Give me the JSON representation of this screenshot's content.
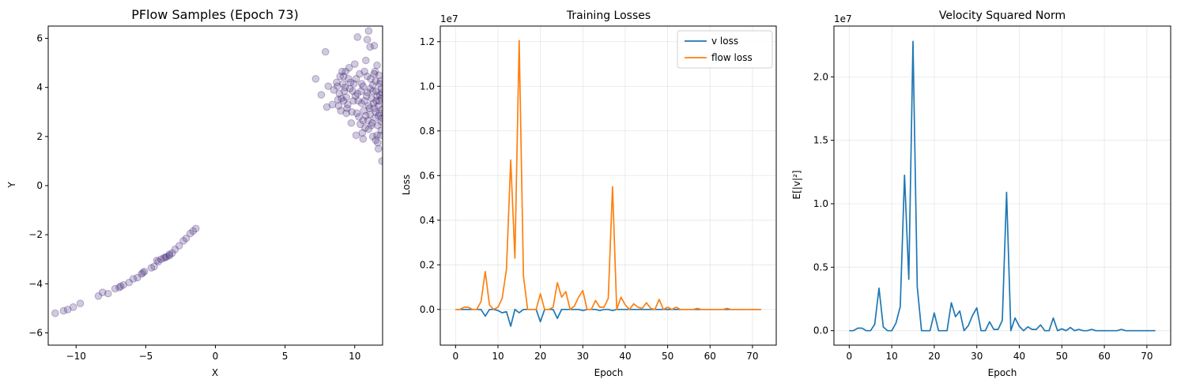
{
  "colors": {
    "scatter": "#472d7b",
    "v_loss": "#1f77b4",
    "flow_loss": "#ff7f0e"
  },
  "chart_data": [
    {
      "type": "scatter",
      "title": "PFlow Samples (Epoch 73)",
      "xlabel": "X",
      "ylabel": "Y",
      "xlim": [
        -12,
        12
      ],
      "ylim": [
        -6.5,
        6.5
      ],
      "xticks": [
        "−10",
        "−5",
        "0",
        "5",
        "10"
      ],
      "xtick_values": [
        -10,
        -5,
        0,
        5,
        10
      ],
      "yticks": [
        "−6",
        "−4",
        "−2",
        "0",
        "2",
        "4",
        "6"
      ],
      "ytick_values": [
        -6,
        -4,
        -2,
        0,
        2,
        4,
        6
      ],
      "grid": false,
      "points": [
        [
          -11.5,
          -5.2
        ],
        [
          -10.9,
          -5.1
        ],
        [
          -10.6,
          -5.05
        ],
        [
          -10.2,
          -4.95
        ],
        [
          -9.7,
          -4.8
        ],
        [
          -8.4,
          -4.5
        ],
        [
          -8.1,
          -4.35
        ],
        [
          -7.7,
          -4.4
        ],
        [
          -7.2,
          -4.2
        ],
        [
          -6.9,
          -4.15
        ],
        [
          -6.6,
          -4.05
        ],
        [
          -6.2,
          -3.95
        ],
        [
          -5.9,
          -3.8
        ],
        [
          -5.6,
          -3.75
        ],
        [
          -5.3,
          -3.6
        ],
        [
          -5.1,
          -3.5
        ],
        [
          -4.6,
          -3.35
        ],
        [
          -4.4,
          -3.3
        ],
        [
          -4.1,
          -3.1
        ],
        [
          -3.9,
          -3.0
        ],
        [
          -3.7,
          -2.95
        ],
        [
          -3.5,
          -2.9
        ],
        [
          -3.3,
          -2.85
        ],
        [
          -3.1,
          -2.75
        ],
        [
          -2.9,
          -2.6
        ],
        [
          -2.6,
          -2.45
        ],
        [
          -2.3,
          -2.25
        ],
        [
          -2.1,
          -2.15
        ],
        [
          -1.8,
          -1.95
        ],
        [
          -1.6,
          -1.85
        ],
        [
          -1.4,
          -1.75
        ],
        [
          -4.2,
          -3.05
        ],
        [
          -3.6,
          -2.92
        ],
        [
          -5.2,
          -3.55
        ],
        [
          -6.8,
          -4.1
        ],
        [
          -3.3,
          -2.8
        ],
        [
          7.2,
          4.35
        ],
        [
          7.6,
          3.7
        ],
        [
          7.9,
          5.45
        ],
        [
          8.1,
          4.05
        ],
        [
          8.0,
          3.2
        ],
        [
          8.4,
          3.3
        ],
        [
          8.5,
          3.9
        ],
        [
          8.7,
          4.2
        ],
        [
          8.8,
          3.5
        ],
        [
          9.0,
          3.05
        ],
        [
          9.1,
          4.65
        ],
        [
          9.2,
          4.45
        ],
        [
          9.3,
          4.0
        ],
        [
          9.4,
          3.6
        ],
        [
          9.5,
          3.3
        ],
        [
          9.6,
          4.8
        ],
        [
          9.7,
          4.2
        ],
        [
          9.8,
          3.0
        ],
        [
          9.9,
          3.45
        ],
        [
          10.0,
          4.95
        ],
        [
          10.1,
          4.35
        ],
        [
          10.2,
          3.75
        ],
        [
          10.3,
          2.8
        ],
        [
          10.4,
          2.5
        ],
        [
          10.5,
          3.35
        ],
        [
          10.6,
          4.05
        ],
        [
          10.7,
          4.65
        ],
        [
          10.8,
          5.1
        ],
        [
          10.9,
          3.8
        ],
        [
          11.0,
          2.3
        ],
        [
          11.1,
          2.9
        ],
        [
          11.2,
          3.55
        ],
        [
          11.3,
          4.1
        ],
        [
          11.4,
          4.55
        ],
        [
          11.5,
          3.0
        ],
        [
          11.6,
          2.05
        ],
        [
          11.7,
          3.25
        ],
        [
          11.8,
          3.7
        ],
        [
          11.9,
          2.6
        ],
        [
          11.95,
          1.0
        ],
        [
          10.2,
          6.05
        ],
        [
          11.0,
          6.3
        ],
        [
          11.1,
          5.65
        ],
        [
          11.4,
          5.7
        ],
        [
          11.6,
          4.9
        ],
        [
          10.9,
          5.95
        ],
        [
          11.3,
          2.0
        ],
        [
          10.6,
          1.9
        ],
        [
          10.1,
          2.05
        ],
        [
          9.4,
          2.95
        ],
        [
          9.2,
          3.45
        ],
        [
          8.9,
          3.75
        ],
        [
          11.7,
          1.5
        ],
        [
          11.5,
          1.85
        ],
        [
          11.8,
          2.95
        ],
        [
          11.9,
          3.95
        ],
        [
          11.85,
          4.25
        ],
        [
          11.75,
          3.45
        ],
        [
          11.65,
          2.45
        ],
        [
          11.55,
          3.85
        ],
        [
          11.45,
          2.75
        ],
        [
          11.35,
          3.35
        ],
        [
          11.25,
          2.55
        ],
        [
          11.15,
          4.35
        ],
        [
          11.05,
          3.15
        ],
        [
          10.95,
          2.65
        ],
        [
          10.85,
          3.65
        ],
        [
          10.75,
          2.35
        ],
        [
          10.65,
          3.05
        ],
        [
          10.55,
          2.15
        ],
        [
          10.45,
          3.85
        ],
        [
          10.35,
          4.55
        ],
        [
          10.25,
          3.45
        ],
        [
          10.15,
          2.95
        ],
        [
          10.05,
          3.65
        ],
        [
          9.95,
          4.15
        ],
        [
          9.85,
          3.85
        ],
        [
          9.75,
          2.55
        ],
        [
          9.65,
          3.95
        ],
        [
          9.55,
          4.35
        ],
        [
          9.45,
          3.15
        ],
        [
          9.35,
          4.65
        ],
        [
          9.25,
          3.85
        ],
        [
          9.15,
          4.15
        ],
        [
          9.05,
          3.55
        ],
        [
          8.95,
          4.45
        ],
        [
          8.85,
          3.25
        ],
        [
          8.75,
          4.05
        ],
        [
          11.9,
          3.55
        ],
        [
          11.9,
          2.25
        ],
        [
          11.8,
          4.15
        ],
        [
          11.7,
          2.85
        ],
        [
          11.6,
          3.65
        ],
        [
          11.5,
          4.25
        ],
        [
          11.4,
          3.15
        ],
        [
          11.3,
          3.85
        ],
        [
          11.2,
          2.45
        ],
        [
          11.1,
          3.95
        ],
        [
          11.0,
          3.25
        ],
        [
          10.9,
          4.45
        ],
        [
          10.8,
          2.85
        ],
        [
          10.7,
          3.45
        ],
        [
          10.6,
          2.65
        ],
        [
          10.5,
          4.15
        ],
        [
          11.95,
          3.1
        ],
        [
          11.95,
          2.75
        ],
        [
          11.95,
          3.8
        ],
        [
          11.85,
          2.05
        ],
        [
          11.75,
          4.5
        ],
        [
          11.65,
          1.75
        ],
        [
          11.55,
          3.45
        ],
        [
          11.45,
          4.65
        ]
      ]
    },
    {
      "type": "line",
      "title": "Training Losses",
      "xlabel": "Epoch",
      "ylabel": "Loss",
      "offset_label": "1e7",
      "xlim": [
        -3.6,
        75.6
      ],
      "ylim": [
        -1.6,
        12.7
      ],
      "xticks": [
        "0",
        "10",
        "20",
        "30",
        "40",
        "50",
        "60",
        "70"
      ],
      "xtick_values": [
        0,
        10,
        20,
        30,
        40,
        50,
        60,
        70
      ],
      "yticks": [
        "0.0",
        "0.2",
        "0.4",
        "0.6",
        "0.8",
        "1.0",
        "1.2"
      ],
      "ytick_values": [
        0,
        2,
        4,
        6,
        8,
        10,
        12
      ],
      "grid": true,
      "legend_position": "top-right",
      "series": [
        {
          "name": "v loss",
          "x": [
            0,
            1,
            2,
            3,
            4,
            5,
            6,
            7,
            8,
            9,
            10,
            11,
            12,
            13,
            14,
            15,
            16,
            17,
            18,
            19,
            20,
            21,
            22,
            23,
            24,
            25,
            26,
            27,
            28,
            29,
            30,
            31,
            32,
            33,
            34,
            35,
            36,
            37,
            38,
            39,
            40,
            41,
            42,
            43,
            44,
            45,
            46,
            47,
            48,
            49,
            50,
            51,
            52,
            53,
            54,
            55,
            56,
            57,
            58,
            59,
            60,
            61,
            62,
            63,
            64,
            65,
            66,
            67,
            68,
            69,
            70,
            71,
            72
          ],
          "values": [
            0,
            0,
            0,
            0,
            0,
            0,
            0,
            -0.3,
            0,
            0,
            -0.05,
            -0.15,
            -0.1,
            -0.75,
            0,
            -0.15,
            0,
            0,
            0,
            0,
            -0.55,
            0,
            0,
            0,
            -0.4,
            0,
            0,
            0,
            0,
            0,
            -0.05,
            0,
            0,
            0,
            -0.05,
            0,
            0,
            -0.05,
            0,
            0,
            0,
            0,
            0,
            0,
            0,
            0,
            0,
            0,
            0,
            0,
            0,
            0,
            0,
            0,
            0,
            0,
            0,
            0,
            0,
            0,
            0,
            0,
            0,
            0,
            0,
            0,
            0,
            0,
            0,
            0,
            0,
            0,
            0
          ]
        },
        {
          "name": "flow loss",
          "x": [
            0,
            1,
            2,
            3,
            4,
            5,
            6,
            7,
            8,
            9,
            10,
            11,
            12,
            13,
            14,
            15,
            16,
            17,
            18,
            19,
            20,
            21,
            22,
            23,
            24,
            25,
            26,
            27,
            28,
            29,
            30,
            31,
            32,
            33,
            34,
            35,
            36,
            37,
            38,
            39,
            40,
            41,
            42,
            43,
            44,
            45,
            46,
            47,
            48,
            49,
            50,
            51,
            52,
            53,
            54,
            55,
            56,
            57,
            58,
            59,
            60,
            61,
            62,
            63,
            64,
            65,
            66,
            67,
            68,
            69,
            70,
            71,
            72
          ],
          "values": [
            0,
            0,
            0.1,
            0.1,
            0,
            0,
            0.35,
            1.7,
            0.2,
            0,
            0.1,
            0.5,
            1.8,
            6.7,
            2.3,
            12.05,
            1.5,
            0,
            0,
            0,
            0.7,
            0,
            0,
            0.1,
            1.2,
            0.55,
            0.8,
            0,
            0.15,
            0.55,
            0.85,
            0,
            0,
            0.4,
            0.1,
            0.1,
            0.5,
            5.5,
            0,
            0.55,
            0.2,
            0,
            0.25,
            0.1,
            0.05,
            0.3,
            0.05,
            0,
            0.45,
            0,
            0.1,
            0,
            0.1,
            0,
            0,
            0,
            0,
            0.05,
            0,
            0,
            0,
            0,
            0,
            0,
            0.05,
            0,
            0,
            0,
            0,
            0,
            0,
            0,
            0
          ]
        }
      ]
    },
    {
      "type": "line",
      "title": "Velocity Squared Norm",
      "xlabel": "Epoch",
      "ylabel": "E[|v|²]",
      "offset_label": "1e7",
      "xlim": [
        -3.6,
        75.6
      ],
      "ylim": [
        -1.14,
        24.0
      ],
      "xticks": [
        "0",
        "10",
        "20",
        "30",
        "40",
        "50",
        "60",
        "70"
      ],
      "xtick_values": [
        0,
        10,
        20,
        30,
        40,
        50,
        60,
        70
      ],
      "yticks": [
        "0.0",
        "0.5",
        "1.0",
        "1.5",
        "2.0"
      ],
      "ytick_values": [
        0,
        5,
        10,
        15,
        20
      ],
      "grid": true,
      "series": [
        {
          "x": [
            0,
            1,
            2,
            3,
            4,
            5,
            6,
            7,
            8,
            9,
            10,
            11,
            12,
            13,
            14,
            15,
            16,
            17,
            18,
            19,
            20,
            21,
            22,
            23,
            24,
            25,
            26,
            27,
            28,
            29,
            30,
            31,
            32,
            33,
            34,
            35,
            36,
            37,
            38,
            39,
            40,
            41,
            42,
            43,
            44,
            45,
            46,
            47,
            48,
            49,
            50,
            51,
            52,
            53,
            54,
            55,
            56,
            57,
            58,
            59,
            60,
            61,
            62,
            63,
            64,
            65,
            66,
            67,
            68,
            69,
            70,
            71,
            72
          ],
          "values": [
            0,
            0,
            0.2,
            0.2,
            0,
            0,
            0.5,
            3.35,
            0.3,
            0,
            0,
            0.6,
            1.9,
            12.25,
            4.05,
            22.8,
            3.45,
            0,
            0,
            0,
            1.4,
            0,
            0,
            0,
            2.2,
            1.1,
            1.55,
            0,
            0.4,
            1.2,
            1.8,
            0,
            0,
            0.7,
            0.1,
            0.1,
            0.8,
            10.9,
            0,
            1.0,
            0.35,
            0,
            0.3,
            0.1,
            0.1,
            0.45,
            0,
            0,
            1.0,
            0,
            0.15,
            0,
            0.25,
            0,
            0.1,
            0,
            0,
            0.1,
            0,
            0,
            0,
            0,
            0,
            0,
            0.1,
            0,
            0,
            0,
            0,
            0,
            0,
            0,
            0
          ]
        }
      ]
    }
  ]
}
